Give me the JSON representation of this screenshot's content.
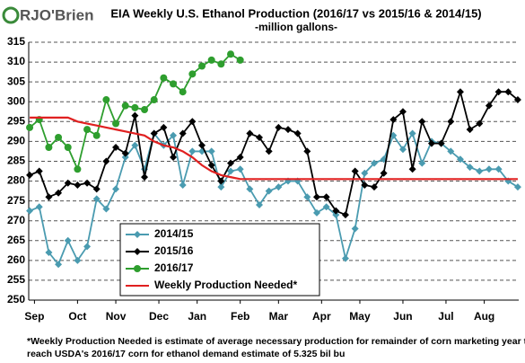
{
  "chart_data": {
    "type": "line",
    "logo": "RJO'Brien",
    "title": "EIA Weekly U.S. Ethanol Production (2016/17 vs 2015/16 & 2014/15)",
    "subtitle": "-million  gallons-",
    "footnote": [
      "*Weekly Production Needed is estimate of average necessary production for remainder of corn marketing year to",
      "reach USDA's 2016/17 corn for ethanol demand estimate of 5.325 bil bu"
    ],
    "x": [
      0,
      1,
      2,
      3,
      4,
      5,
      6,
      7,
      8,
      9,
      10,
      11,
      12,
      13,
      14,
      15,
      16,
      17,
      18,
      19,
      20,
      21,
      22,
      23,
      24,
      25,
      26,
      27,
      28,
      29,
      30,
      31,
      32,
      33,
      34,
      35,
      36,
      37,
      38,
      39,
      40,
      41,
      42,
      43,
      44,
      45,
      46,
      47,
      48,
      49,
      50,
      51
    ],
    "xlim": [
      -0.1,
      51.1
    ],
    "xticks": [
      {
        "value": 0.5,
        "label": "Sep"
      },
      {
        "value": 5,
        "label": "Oct"
      },
      {
        "value": 9,
        "label": "Nov"
      },
      {
        "value": 13.5,
        "label": "Dec"
      },
      {
        "value": 17.5,
        "label": "Jan"
      },
      {
        "value": 22,
        "label": "Feb"
      },
      {
        "value": 26,
        "label": "Mar"
      },
      {
        "value": 30.5,
        "label": "Apr"
      },
      {
        "value": 34.5,
        "label": "May"
      },
      {
        "value": 39,
        "label": "Jun"
      },
      {
        "value": 43.5,
        "label": "Jul"
      },
      {
        "value": 47.5,
        "label": "Aug"
      }
    ],
    "ylim": [
      250,
      315
    ],
    "yticks": [
      250,
      255,
      260,
      265,
      270,
      275,
      280,
      285,
      290,
      295,
      300,
      305,
      310,
      315
    ],
    "grid": true,
    "legend": "lower left",
    "series": [
      {
        "name": "2014/15",
        "color": "#4a9bb0",
        "marker": "diamond",
        "values": [
          272.5,
          273.5,
          262,
          259,
          265,
          260,
          263.5,
          275.5,
          273,
          278,
          286,
          289,
          283,
          292,
          289,
          291.5,
          279,
          287.5,
          287.5,
          287.5,
          278.5,
          282.5,
          283,
          278,
          274,
          277.5,
          278.5,
          280,
          280,
          276,
          272,
          273.5,
          271.5,
          260.5,
          268,
          282,
          284.5,
          285.5,
          291.5,
          288,
          292,
          284.5,
          290,
          289.5,
          287.5,
          285.5,
          283.5,
          282.5,
          283,
          283,
          280,
          278.5
        ]
      },
      {
        "name": "2015/16",
        "color": "#000000",
        "marker": "diamond",
        "values": [
          281.5,
          282.5,
          276,
          277,
          279.5,
          279,
          279.5,
          278,
          285,
          288.5,
          287,
          296.5,
          281,
          292,
          293.5,
          286,
          292,
          295,
          289,
          284,
          280,
          284.5,
          286,
          292,
          291,
          287.5,
          293.5,
          293,
          292,
          287.5,
          276,
          276,
          272.5,
          271.5,
          282.5,
          279,
          278.5,
          282,
          295.5,
          297.5,
          283,
          295,
          289.5,
          289.5,
          295,
          302.5,
          293,
          294.5,
          299,
          302.5,
          302.5,
          300.5
        ]
      },
      {
        "name": "2016/17",
        "color": "#2e9e2e",
        "marker": "circle",
        "values": [
          293.5,
          295.5,
          288.5,
          291,
          288.5,
          283,
          293,
          291.5,
          300.5,
          294.5,
          299,
          298.5,
          298,
          300.5,
          306,
          304.5,
          302.5,
          307,
          309,
          310.5,
          309.5,
          312,
          310.5,
          null,
          null,
          null,
          null,
          null,
          null,
          null,
          null,
          null,
          null,
          null,
          null,
          null,
          null,
          null,
          null,
          null,
          null,
          null,
          null,
          null,
          null,
          null,
          null,
          null,
          null,
          null,
          null,
          null
        ]
      },
      {
        "name": "Weekly Production Needed*",
        "color": "#e02020",
        "marker": "none",
        "values": [
          296,
          296,
          296,
          296,
          296,
          295,
          294.5,
          294,
          293.5,
          293,
          292.5,
          292,
          291.5,
          290,
          289,
          288.5,
          287.5,
          286,
          284,
          282.5,
          281.5,
          281,
          280.5,
          280.5,
          280.5,
          280.5,
          280.5,
          280.5,
          280.5,
          280.5,
          280.5,
          280.5,
          280.5,
          280.5,
          280.5,
          280.5,
          280.5,
          280.5,
          280.5,
          280.5,
          280.5,
          280.5,
          280.5,
          280.5,
          280.5,
          280.5,
          280.5,
          280.5,
          280.5,
          280.5,
          280.5,
          280.5
        ]
      }
    ]
  }
}
